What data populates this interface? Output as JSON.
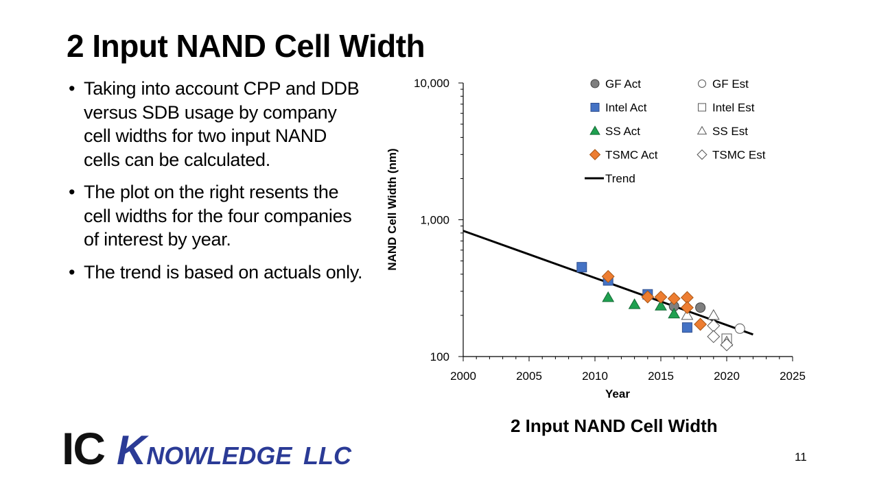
{
  "slide": {
    "title": "2 Input NAND Cell Width",
    "bullets": [
      "Taking into account CPP and DDB versus SDB usage by company cell widths for two input NAND cells can be calculated.",
      "The plot on the right resents the cell widths for the four companies of interest by year.",
      "The trend is based on actuals only."
    ],
    "bullet_char": "•",
    "caption": "2 Input NAND Cell Width",
    "page_number": "11",
    "logo": {
      "ic": "IC",
      "k": "K",
      "rest": "NOWLEDGE",
      "llc": "LLC"
    }
  },
  "chart_data": {
    "type": "scatter",
    "title": "",
    "xlabel": "Year",
    "ylabel": "NAND Cell Width (nm)",
    "xlim": [
      2000,
      2025
    ],
    "ylim": [
      100,
      10000
    ],
    "y_scale": "log",
    "x_ticks": [
      "2000",
      "2005",
      "2010",
      "2015",
      "2020",
      "2025"
    ],
    "y_ticks": [
      "100",
      "1,000",
      "10,000"
    ],
    "legend_position": "top-right",
    "series": [
      {
        "name": "GF Act",
        "marker": "circle",
        "fill": "#7f7f7f",
        "stroke": "#404040",
        "points": [
          [
            2016,
            233
          ],
          [
            2018,
            228
          ]
        ]
      },
      {
        "name": "GF Est",
        "marker": "circle",
        "fill": "#ffffff",
        "stroke": "#555555",
        "points": [
          [
            2021,
            160
          ]
        ]
      },
      {
        "name": "Intel Act",
        "marker": "square",
        "fill": "#4472c4",
        "stroke": "#2f4f8f",
        "points": [
          [
            2009,
            450
          ],
          [
            2011,
            360
          ],
          [
            2014,
            285
          ],
          [
            2017,
            163
          ]
        ]
      },
      {
        "name": "Intel Est",
        "marker": "square",
        "fill": "#ffffff",
        "stroke": "#555555",
        "points": [
          [
            2020,
            135
          ]
        ]
      },
      {
        "name": "SS Act",
        "marker": "triangle",
        "fill": "#1fa050",
        "stroke": "#146b35",
        "points": [
          [
            2011,
            270
          ],
          [
            2013,
            240
          ],
          [
            2015,
            234
          ],
          [
            2016,
            205
          ]
        ]
      },
      {
        "name": "SS Est",
        "marker": "triangle",
        "fill": "#ffffff",
        "stroke": "#555555",
        "points": [
          [
            2017,
            200
          ],
          [
            2019,
            200
          ],
          [
            2020,
            128
          ]
        ]
      },
      {
        "name": "TSMC Act",
        "marker": "diamond",
        "fill": "#ed7d31",
        "stroke": "#a85514",
        "points": [
          [
            2011,
            385
          ],
          [
            2014,
            273
          ],
          [
            2015,
            272
          ],
          [
            2016,
            265
          ],
          [
            2017,
            270
          ],
          [
            2017,
            228
          ],
          [
            2018,
            172
          ]
        ]
      },
      {
        "name": "TSMC Est",
        "marker": "diamond",
        "fill": "#ffffff",
        "stroke": "#555555",
        "points": [
          [
            2019,
            168
          ],
          [
            2019,
            140
          ],
          [
            2020,
            122
          ]
        ]
      }
    ],
    "trend": {
      "name": "Trend",
      "color": "#000000",
      "points": [
        [
          2000,
          830
        ],
        [
          2022,
          145
        ]
      ]
    }
  }
}
